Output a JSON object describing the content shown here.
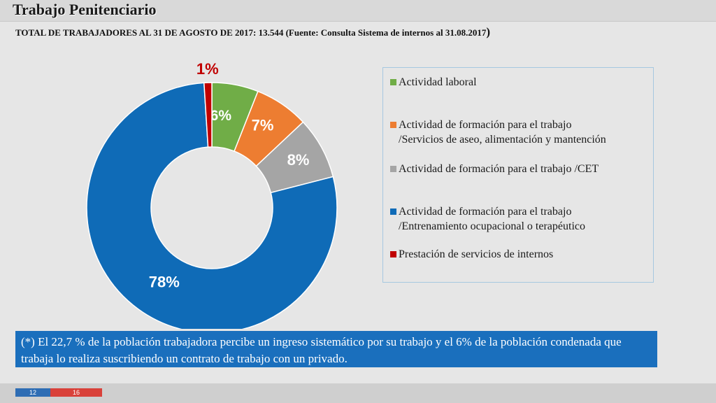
{
  "header": {
    "title": "Trabajo Penitenciario",
    "subtitle": "TOTAL DE TRABAJADORES AL 31 DE AGOSTO DE 2017: 13.544 (Fuente: Consulta Sistema de internos al 31.08.2017",
    "subtitle_close": ")"
  },
  "chart_data": {
    "type": "pie",
    "donut": true,
    "slices": [
      {
        "label": "Actividad laboral",
        "value": 6,
        "data_label": "6%",
        "color": "#70ad47",
        "label_color": "#ffffff"
      },
      {
        "label": "Actividad de formación para el trabajo /Servicios de aseo, alimentación y mantención",
        "value": 7,
        "data_label": "7%",
        "color": "#ed7d31",
        "label_color": "#ffffff"
      },
      {
        "label": "Actividad de formación para el trabajo /CET",
        "value": 8,
        "data_label": "8%",
        "color": "#a5a5a5",
        "label_color": "#ffffff"
      },
      {
        "label": "Actividad de formación para el trabajo /Entrenamiento ocupacional o terapéutico",
        "value": 78,
        "data_label": "78%",
        "color": "#0f6bb7",
        "label_color": "#ffffff"
      },
      {
        "label": "Prestación de servicios de internos",
        "value": 1,
        "data_label": "1%",
        "color": "#c00000",
        "label_color": "#c00000"
      }
    ],
    "legend_position": "right"
  },
  "legend": {
    "items": [
      {
        "line1": "Actividad laboral",
        "line2": ""
      },
      {
        "line1": "Actividad de formación para el trabajo",
        "line2": "/Servicios de aseo, alimentación y mantención"
      },
      {
        "line1": "Actividad de formación para el trabajo /CET",
        "line2": ""
      },
      {
        "line1": "Actividad de formación para el trabajo",
        "line2": "/Entrenamiento ocupacional o terapéutico"
      },
      {
        "line1": "Prestación de servicios de internos",
        "line2": ""
      }
    ]
  },
  "note": "(*) El 22,7 % de la población trabajadora percibe un ingreso sistemático por su trabajo y el 6% de la población condenada que trabaja lo realiza suscribiendo un contrato de trabajo con un privado.",
  "footer": {
    "page_current": "12",
    "page_total": "16"
  }
}
